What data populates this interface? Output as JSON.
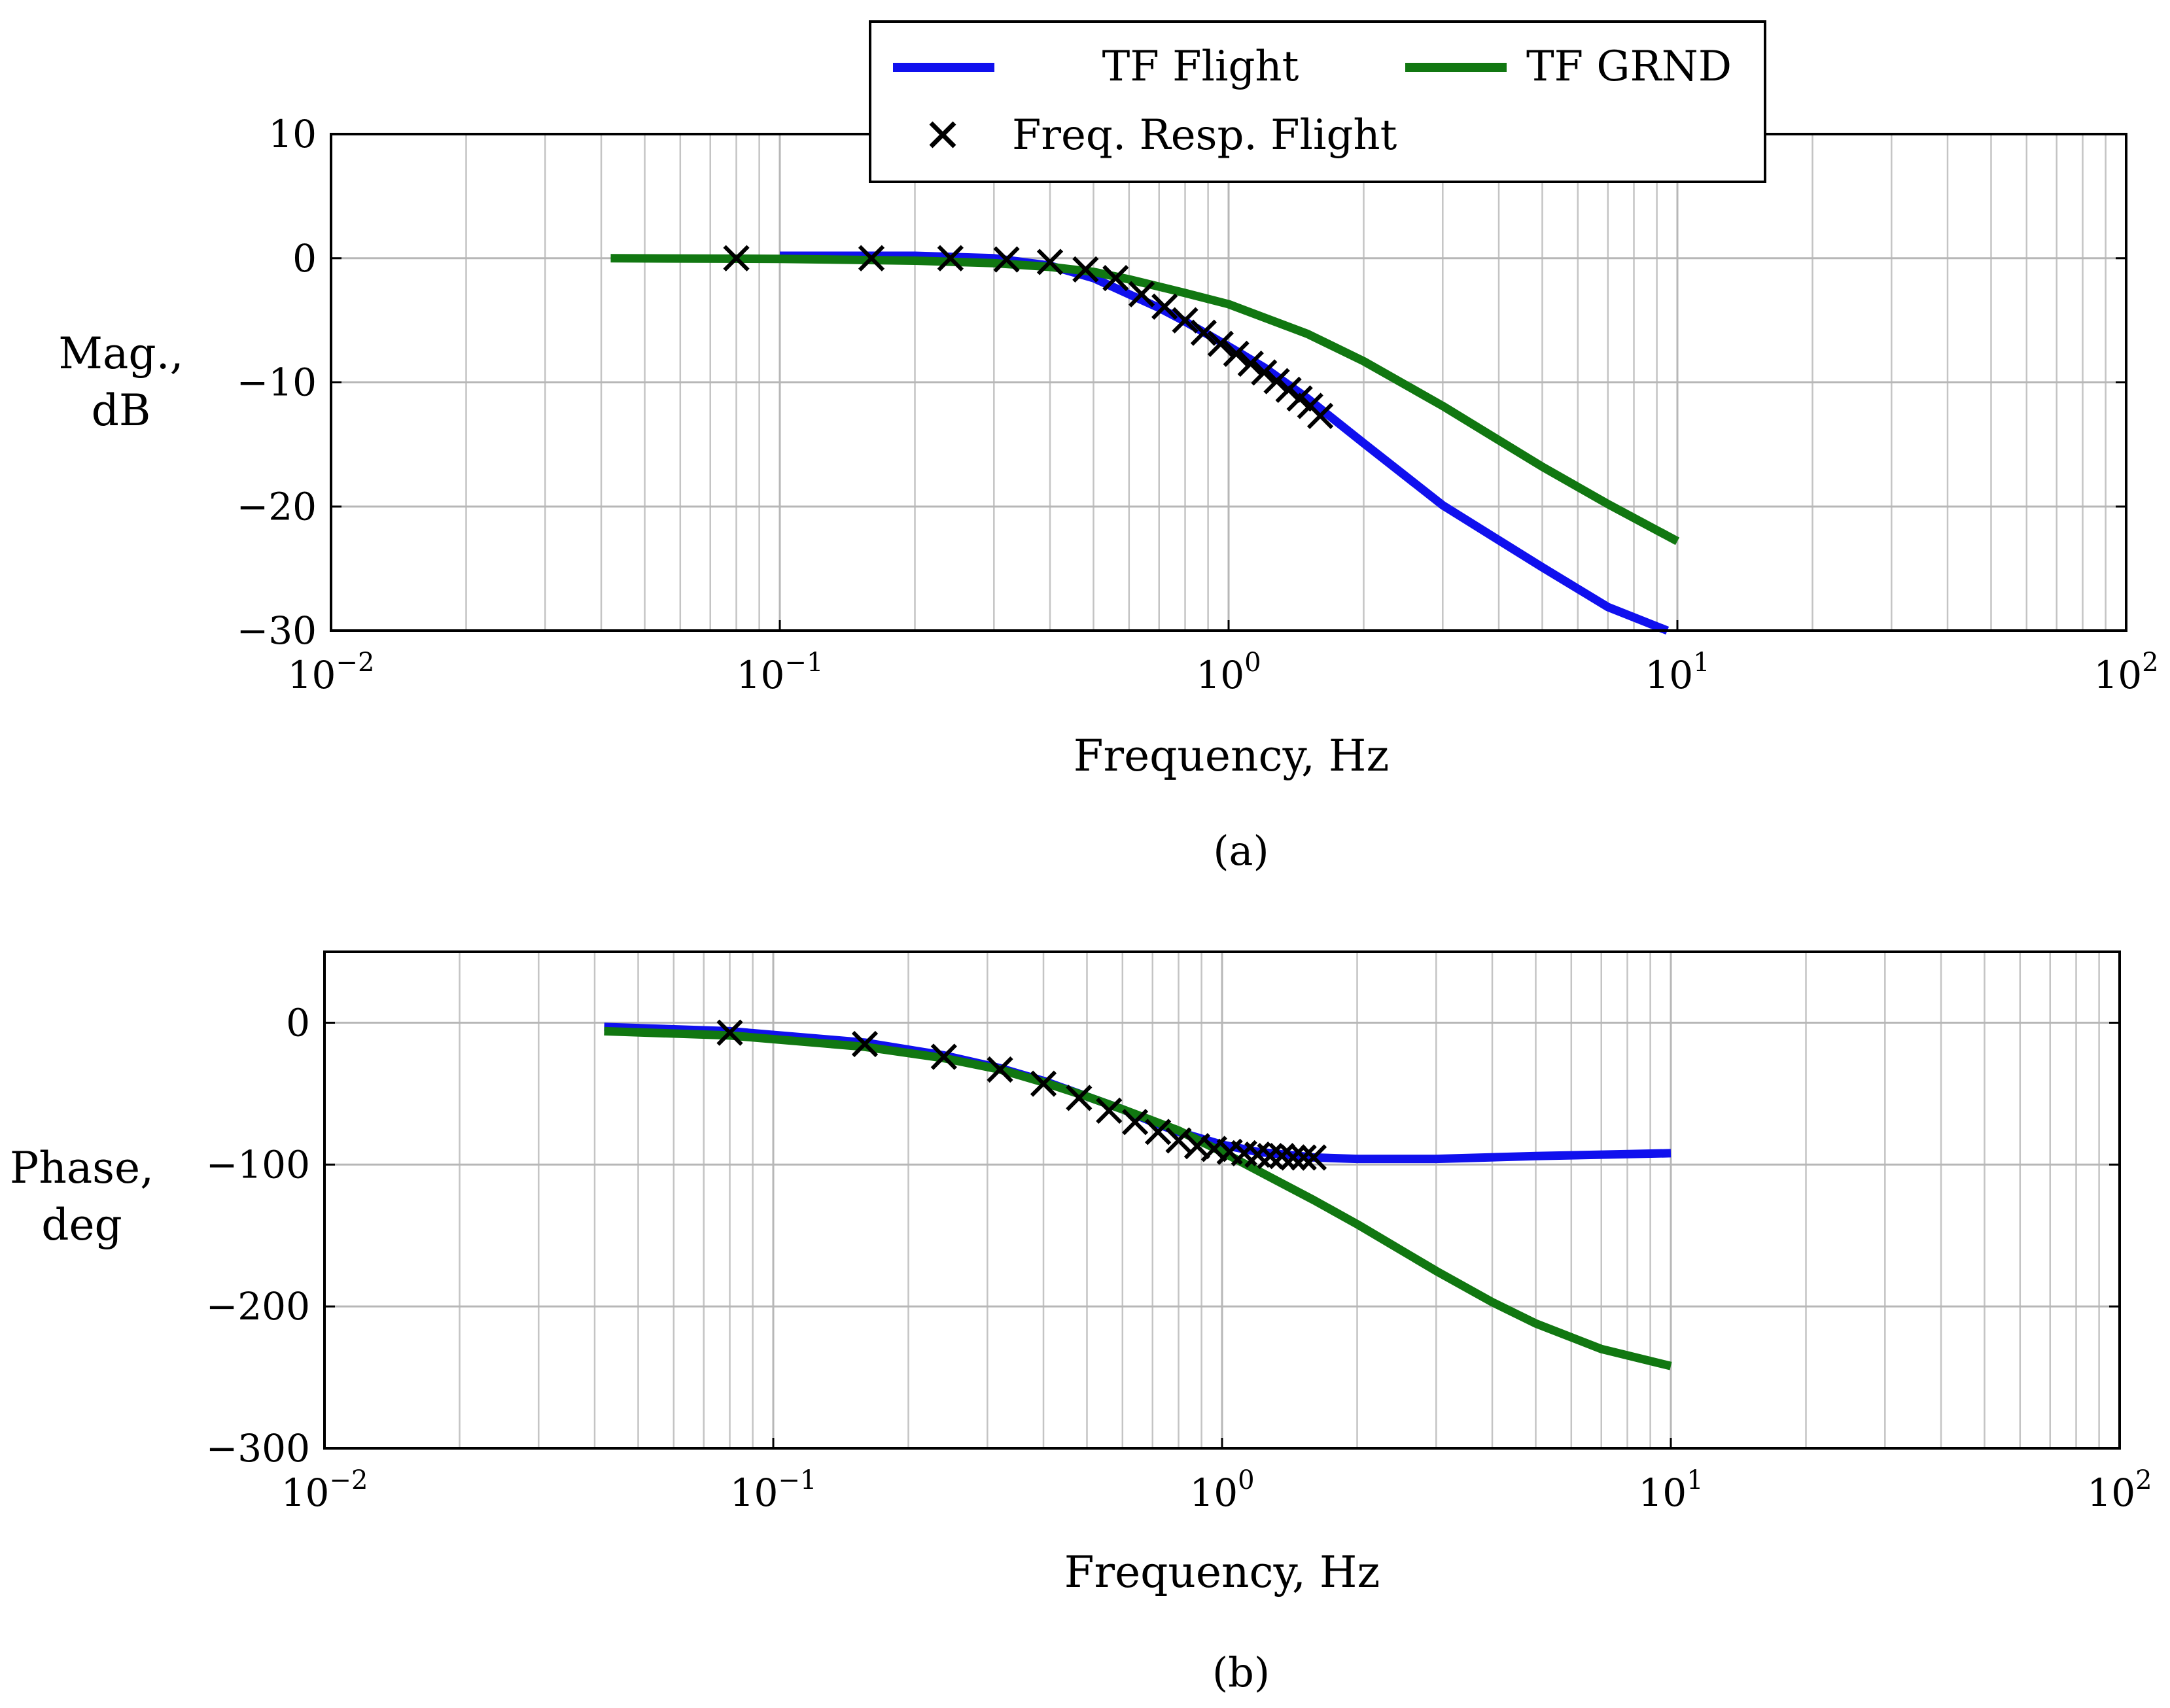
{
  "colors": {
    "tf_flight": "#1010ee",
    "tf_grnd": "#117711",
    "freq_resp": "#000000"
  },
  "legend": {
    "entries": [
      "TF Flight",
      "TF GRND",
      "Freq. Resp. Flight"
    ]
  },
  "chart_data": [
    {
      "type": "line",
      "panel": "(a)",
      "caption": "(a)",
      "xlabel": "Frequency, Hz",
      "ylabel": [
        "Mag.,",
        "dB"
      ],
      "xscale": "log",
      "xlim": [
        0.01,
        100
      ],
      "ylim": [
        -30,
        10
      ],
      "xticks": [
        0.01,
        0.1,
        1,
        10,
        100
      ],
      "xtick_labels": [
        [
          "10",
          "−2"
        ],
        [
          "10",
          "−1"
        ],
        [
          "10",
          "0"
        ],
        [
          "10",
          "1"
        ],
        [
          "10",
          "2"
        ]
      ],
      "yticks": [
        10,
        0,
        -10,
        -20,
        -30
      ],
      "ytick_labels": [
        "10",
        "0",
        "−10",
        "−20",
        "−30"
      ],
      "grid": true,
      "legend_position": "top-center",
      "series": [
        {
          "name": "TF Flight",
          "kind": "line",
          "x": [
            0.1,
            0.2,
            0.3,
            0.4,
            0.5,
            0.6,
            0.7,
            0.8,
            1.0,
            1.2,
            1.5,
            2.0,
            3.0,
            5.0,
            7.0,
            9.5
          ],
          "y": [
            0.2,
            0.2,
            0.0,
            -0.6,
            -1.6,
            -2.9,
            -4.0,
            -5.1,
            -7.1,
            -8.8,
            -11.3,
            -14.9,
            -19.9,
            -24.9,
            -28.1,
            -30.0
          ]
        },
        {
          "name": "TF GRND",
          "kind": "line",
          "x": [
            0.042,
            0.1,
            0.2,
            0.3,
            0.4,
            0.5,
            0.6,
            0.8,
            1.0,
            1.5,
            2.0,
            3.0,
            5.0,
            7.0,
            10.0
          ],
          "y": [
            0.0,
            -0.05,
            -0.2,
            -0.4,
            -0.7,
            -1.1,
            -1.7,
            -2.8,
            -3.7,
            -6.1,
            -8.3,
            -11.9,
            -16.8,
            -19.8,
            -22.8
          ]
        },
        {
          "name": "Freq. Resp. Flight",
          "kind": "marker",
          "x": [
            0.08,
            0.16,
            0.24,
            0.32,
            0.4,
            0.48,
            0.56,
            0.64,
            0.72,
            0.8,
            0.88,
            0.96,
            1.04,
            1.12,
            1.2,
            1.28,
            1.36,
            1.44,
            1.52,
            1.6
          ],
          "y": [
            0.0,
            0.0,
            0.0,
            -0.1,
            -0.3,
            -0.9,
            -1.6,
            -2.9,
            -3.9,
            -5.0,
            -6.0,
            -6.9,
            -7.7,
            -8.5,
            -9.2,
            -9.9,
            -10.6,
            -11.3,
            -11.9,
            -12.7
          ]
        }
      ]
    },
    {
      "type": "line",
      "panel": "(b)",
      "caption": "(b)",
      "xlabel": "Frequency, Hz",
      "ylabel": [
        "Phase,",
        "deg"
      ],
      "xscale": "log",
      "xlim": [
        0.01,
        100
      ],
      "ylim": [
        -300,
        50
      ],
      "xticks": [
        0.01,
        0.1,
        1,
        10,
        100
      ],
      "xtick_labels": [
        [
          "10",
          "−2"
        ],
        [
          "10",
          "−1"
        ],
        [
          "10",
          "0"
        ],
        [
          "10",
          "1"
        ],
        [
          "10",
          "2"
        ]
      ],
      "yticks": [
        0,
        -100,
        -200,
        -300
      ],
      "ytick_labels": [
        "0",
        "−100",
        "−200",
        "−300"
      ],
      "grid": true,
      "series": [
        {
          "name": "TF Flight",
          "kind": "line",
          "x": [
            0.042,
            0.08,
            0.16,
            0.24,
            0.32,
            0.4,
            0.5,
            0.6,
            0.7,
            0.8,
            1.0,
            1.2,
            1.6,
            2.0,
            3.0,
            5.0,
            10.0
          ],
          "y": [
            -3,
            -6,
            -14,
            -23,
            -32,
            -41,
            -52,
            -61,
            -70,
            -77,
            -86,
            -91,
            -95,
            -96,
            -96,
            -94,
            -92
          ]
        },
        {
          "name": "TF GRND",
          "kind": "line",
          "x": [
            0.042,
            0.08,
            0.16,
            0.24,
            0.32,
            0.4,
            0.5,
            0.6,
            0.7,
            0.8,
            1.0,
            1.3,
            1.6,
            2.0,
            3.0,
            4.0,
            5.0,
            7.0,
            10.0
          ],
          "y": [
            -6,
            -9,
            -17,
            -25,
            -33,
            -42,
            -52,
            -61,
            -69,
            -76,
            -91,
            -110,
            -125,
            -142,
            -175,
            -197,
            -212,
            -230,
            -242
          ]
        },
        {
          "name": "Freq. Resp. Flight",
          "kind": "marker",
          "x": [
            0.08,
            0.16,
            0.24,
            0.32,
            0.4,
            0.48,
            0.56,
            0.64,
            0.72,
            0.8,
            0.88,
            0.96,
            1.04,
            1.12,
            1.2,
            1.28,
            1.36,
            1.44,
            1.52,
            1.6
          ],
          "y": [
            -7,
            -15,
            -24,
            -33,
            -43,
            -53,
            -62,
            -70,
            -77,
            -83,
            -87,
            -89,
            -91,
            -92,
            -93,
            -94,
            -94,
            -95,
            -95,
            -95
          ]
        }
      ]
    }
  ]
}
